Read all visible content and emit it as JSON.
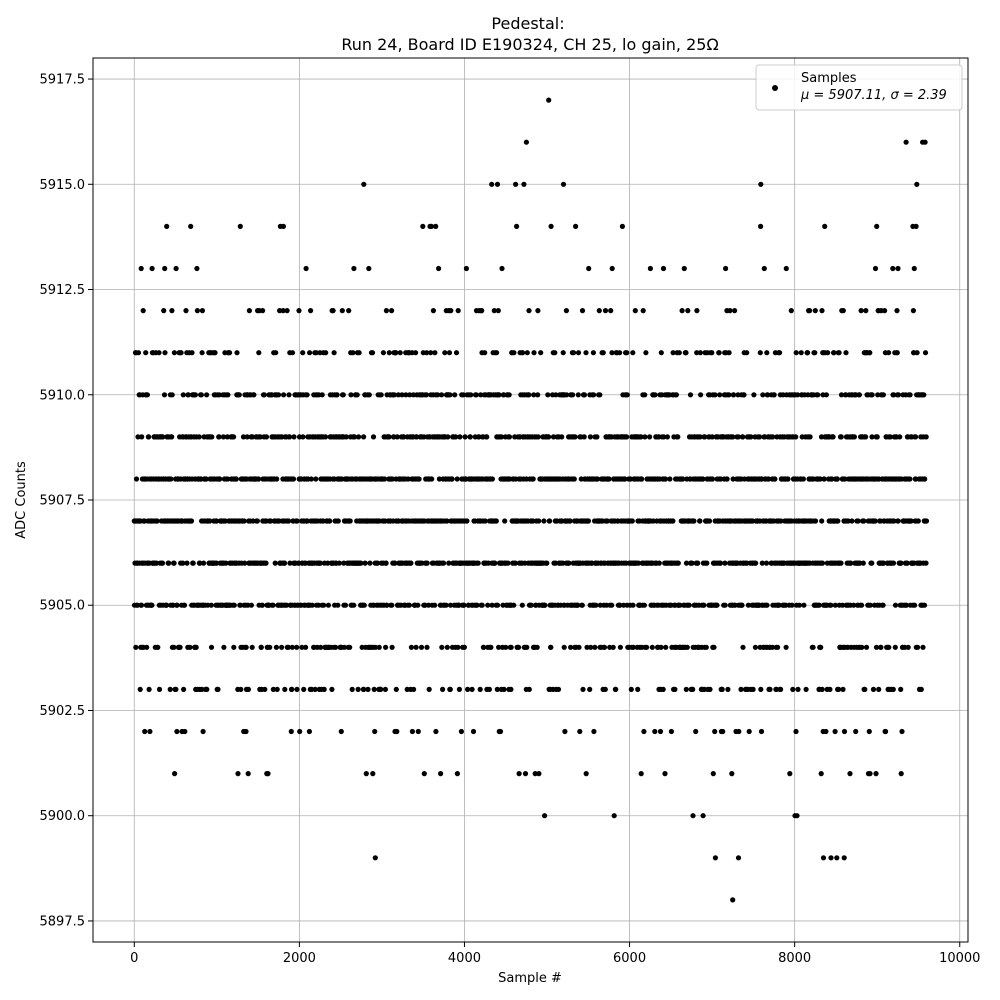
{
  "chart_data": {
    "type": "scatter",
    "title_line1": "Pedestal:",
    "title_line2": "Run 24, Board ID E190324, CH 25, lo gain, 25Ω",
    "xlabel": "Sample #",
    "ylabel": "ADC Counts",
    "xlim": [
      -500,
      10100
    ],
    "ylim": [
      5897,
      5918
    ],
    "x_ticks": [
      0,
      2000,
      4000,
      6000,
      8000,
      10000
    ],
    "x_tick_labels": [
      "0",
      "2000",
      "4000",
      "6000",
      "8000",
      "10000"
    ],
    "y_ticks": [
      5897.5,
      5900.0,
      5902.5,
      5905.0,
      5907.5,
      5910.0,
      5912.5,
      5915.0,
      5917.5
    ],
    "y_tick_labels": [
      "5897.5",
      "5900.0",
      "5902.5",
      "5905.0",
      "5907.5",
      "5910.0",
      "5912.5",
      "5915.0",
      "5917.5"
    ],
    "grid": true,
    "legend_position": "top-right",
    "series": [
      {
        "name": "Samples",
        "legend_stats": "μ = 5907.11, σ = 2.39",
        "color": "#000000",
        "marker": "circle",
        "n_samples": 9600,
        "mean": 5907.11,
        "std": 2.39,
        "x_range": [
          0,
          9599
        ],
        "distinct_values": [
          5898,
          5899,
          5900,
          5901,
          5902,
          5903,
          5904,
          5905,
          5906,
          5907,
          5908,
          5909,
          5910,
          5911,
          5912,
          5913,
          5914,
          5915,
          5916,
          5917
        ],
        "outliers": [
          {
            "x": 5020,
            "y": 5917
          },
          {
            "x": 4750,
            "y": 5916
          },
          {
            "x": 9350,
            "y": 5916
          },
          {
            "x": 9550,
            "y": 5916
          },
          {
            "x": 9580,
            "y": 5916
          },
          {
            "x": 2780,
            "y": 5915
          },
          {
            "x": 4330,
            "y": 5915
          },
          {
            "x": 4400,
            "y": 5915
          },
          {
            "x": 4620,
            "y": 5915
          },
          {
            "x": 4720,
            "y": 5915
          },
          {
            "x": 5200,
            "y": 5915
          },
          {
            "x": 7590,
            "y": 5915
          },
          {
            "x": 9480,
            "y": 5915
          },
          {
            "x": 2920,
            "y": 5899
          },
          {
            "x": 7040,
            "y": 5899
          },
          {
            "x": 7320,
            "y": 5899
          },
          {
            "x": 8350,
            "y": 5899
          },
          {
            "x": 8440,
            "y": 5899
          },
          {
            "x": 8510,
            "y": 5899
          },
          {
            "x": 8600,
            "y": 5899
          },
          {
            "x": 7250,
            "y": 5898
          }
        ]
      }
    ]
  }
}
